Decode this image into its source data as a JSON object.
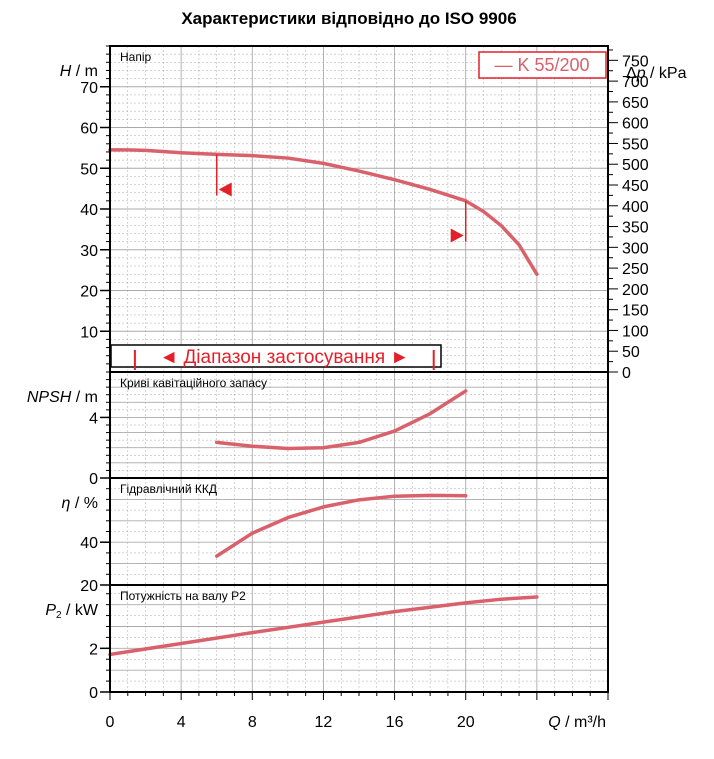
{
  "title": "Характеристики відповідно до ISO 9906",
  "legend": {
    "label": "— K 55/200"
  },
  "range_label": "◄ Діапазон застосування ►",
  "colors": {
    "curve": "#d9616b",
    "range": "#e3202a",
    "grid": "#aaaaaa",
    "axis": "#000000"
  },
  "x_axis": {
    "label_var": "Q",
    "label_unit": " / m³/h",
    "ticks": [
      "0",
      "4",
      "8",
      "12",
      "16",
      "20"
    ]
  },
  "chart_data": [
    {
      "type": "line",
      "panel_title": "Напір",
      "ylabel_var": "H",
      "ylabel_unit": " / m",
      "y2label_prefix": "Δ",
      "y2label_var": "p",
      "y2label_unit": " / kPa",
      "xlim": [
        0,
        28
      ],
      "ylim": [
        0,
        80
      ],
      "y_ticks": [
        "10",
        "20",
        "30",
        "40",
        "50",
        "60",
        "70"
      ],
      "y2lim": [
        0,
        784.5
      ],
      "y2_ticks": [
        "0",
        "50",
        "100",
        "150",
        "200",
        "250",
        "300",
        "350",
        "400",
        "450",
        "500",
        "550",
        "600",
        "650",
        "700",
        "750"
      ],
      "series": [
        {
          "name": "K 55/200",
          "x": [
            0,
            1,
            2,
            4,
            6,
            8,
            10,
            12,
            14,
            16,
            18,
            20,
            21,
            22,
            23,
            24
          ],
          "y": [
            54.5,
            54.5,
            54.4,
            53.8,
            53.4,
            53.1,
            52.5,
            51.2,
            49.3,
            47.2,
            44.8,
            42,
            39.4,
            35.9,
            31.2,
            24
          ]
        }
      ],
      "markers": [
        {
          "x": 6,
          "y_from": 53.4,
          "y_to": 44.8,
          "direction": "left"
        },
        {
          "x": 20,
          "y_from": 42,
          "y_to": 33.5,
          "direction": "right"
        }
      ],
      "application_range": {
        "from": 1.4,
        "to": 18.2
      }
    },
    {
      "type": "line",
      "panel_title": "Криві кавітаційного запасу",
      "ylabel_var": "NPSH",
      "ylabel_unit": " / m",
      "xlim": [
        0,
        28
      ],
      "ylim": [
        0,
        7
      ],
      "y_ticks": [
        "0",
        "4"
      ],
      "series": [
        {
          "name": "NPSH",
          "x": [
            6,
            8,
            10,
            12,
            14,
            16,
            18,
            20
          ],
          "y": [
            2.35,
            2.1,
            1.95,
            2.0,
            2.35,
            3.1,
            4.25,
            5.75
          ]
        }
      ]
    },
    {
      "type": "line",
      "panel_title": "Гідравлічний ККД",
      "ylabel_var": "η",
      "ylabel_unit": " / %",
      "xlim": [
        0,
        28
      ],
      "ylim": [
        20,
        70
      ],
      "y_ticks": [
        "20",
        "40"
      ],
      "series": [
        {
          "name": "η",
          "x": [
            6,
            8,
            10,
            12,
            14,
            16,
            18,
            20
          ],
          "y": [
            33.5,
            44.2,
            51.5,
            56.5,
            59.8,
            61.5,
            61.9,
            61.7
          ]
        }
      ]
    },
    {
      "type": "line",
      "panel_title": "Потужність на валу P2",
      "ylabel_var": "P",
      "ylabel_sub": "2",
      "ylabel_unit": " / kW",
      "xlim": [
        0,
        28
      ],
      "ylim": [
        0,
        4.9
      ],
      "y_ticks": [
        "0",
        "2"
      ],
      "series": [
        {
          "name": "P2",
          "x": [
            0,
            4,
            8,
            12,
            16,
            20,
            22,
            24
          ],
          "y": [
            1.72,
            2.22,
            2.72,
            3.2,
            3.68,
            4.08,
            4.25,
            4.35
          ]
        }
      ]
    }
  ]
}
